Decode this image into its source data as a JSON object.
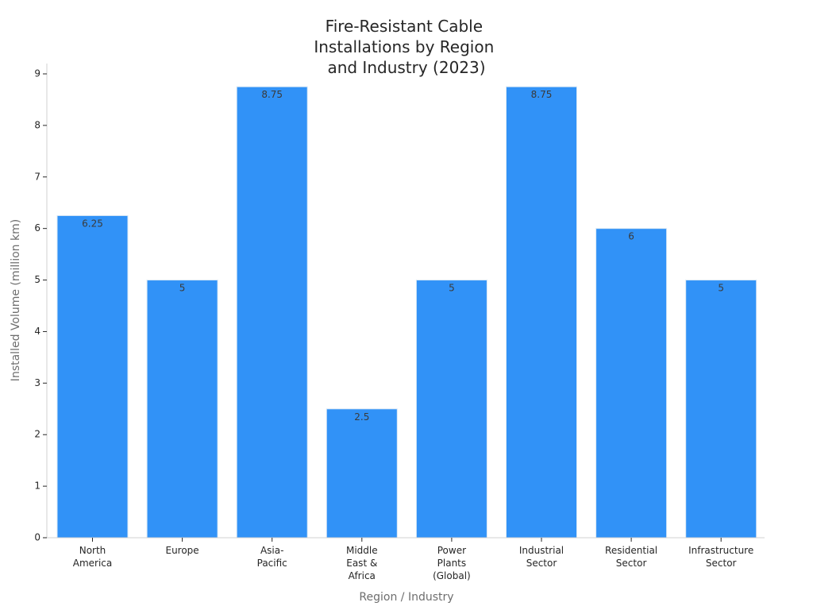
{
  "chart_data": {
    "type": "bar",
    "title_lines": [
      "Fire-Resistant Cable",
      "Installations by Region",
      "and Industry (2023)"
    ],
    "xlabel": "Region / Industry",
    "ylabel": "Installed Volume (million km)",
    "ylim": [
      0,
      9
    ],
    "yticks": [
      "0",
      "1",
      "2",
      "3",
      "4",
      "5",
      "6",
      "7",
      "8",
      "9"
    ],
    "categories": [
      [
        "North",
        "America"
      ],
      [
        "Europe"
      ],
      [
        "Asia-",
        "Pacific"
      ],
      [
        "Middle",
        "East &",
        "Africa"
      ],
      [
        "Power",
        "Plants",
        "(Global)"
      ],
      [
        "Industrial",
        "Sector"
      ],
      [
        "Residential",
        "Sector"
      ],
      [
        "Infrastructure",
        "Sector"
      ]
    ],
    "values": [
      6.25,
      5,
      8.75,
      2.5,
      5,
      8.75,
      6,
      5
    ],
    "data_labels": [
      "6.25",
      "5",
      "8.75",
      "2.5",
      "5",
      "8.75",
      "6",
      "5"
    ],
    "grid": false,
    "colors": {
      "bar": "#3192f7"
    }
  }
}
